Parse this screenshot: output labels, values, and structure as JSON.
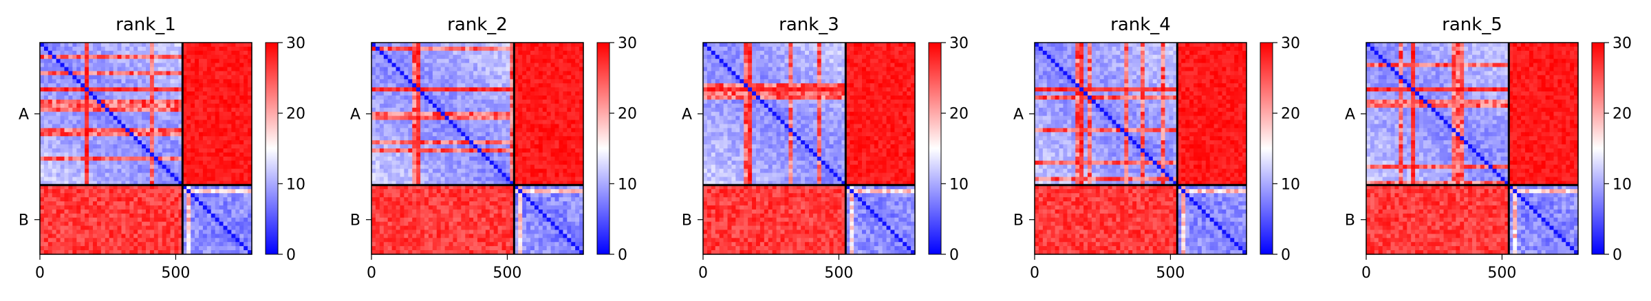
{
  "figure": {
    "colors": {
      "low": "#0000ff",
      "mid": "#ffffff",
      "high": "#ff0000",
      "divider": "#000000"
    }
  },
  "chart_data": [
    {
      "type": "heatmap",
      "title": "rank_1",
      "colormap": "bwr",
      "color_range": [
        0,
        30
      ],
      "colorbar_ticks": [
        0,
        10,
        20,
        30
      ],
      "x_ticks": [
        0,
        500
      ],
      "xlim": [
        0,
        780
      ],
      "chains": [
        {
          "name": "A",
          "start": 0,
          "end": 525
        },
        {
          "name": "B",
          "start": 525,
          "end": 780
        }
      ],
      "block_means": {
        "A-A": 9,
        "A-B": 29,
        "B-A": 28,
        "B-B": 5
      }
    },
    {
      "type": "heatmap",
      "title": "rank_2",
      "colormap": "bwr",
      "color_range": [
        0,
        30
      ],
      "colorbar_ticks": [
        0,
        10,
        20,
        30
      ],
      "x_ticks": [
        0,
        500
      ],
      "xlim": [
        0,
        780
      ],
      "chains": [
        {
          "name": "A",
          "start": 0,
          "end": 525
        },
        {
          "name": "B",
          "start": 525,
          "end": 780
        }
      ],
      "block_means": {
        "A-A": 9,
        "A-B": 29,
        "B-A": 28,
        "B-B": 5
      }
    },
    {
      "type": "heatmap",
      "title": "rank_3",
      "colormap": "bwr",
      "color_range": [
        0,
        30
      ],
      "colorbar_ticks": [
        0,
        10,
        20,
        30
      ],
      "x_ticks": [
        0,
        500
      ],
      "xlim": [
        0,
        780
      ],
      "chains": [
        {
          "name": "A",
          "start": 0,
          "end": 525
        },
        {
          "name": "B",
          "start": 525,
          "end": 780
        }
      ],
      "block_means": {
        "A-A": 9,
        "A-B": 29,
        "B-A": 28,
        "B-B": 5
      }
    },
    {
      "type": "heatmap",
      "title": "rank_4",
      "colormap": "bwr",
      "color_range": [
        0,
        30
      ],
      "colorbar_ticks": [
        0,
        10,
        20,
        30
      ],
      "x_ticks": [
        0,
        500
      ],
      "xlim": [
        0,
        780
      ],
      "chains": [
        {
          "name": "A",
          "start": 0,
          "end": 525
        },
        {
          "name": "B",
          "start": 525,
          "end": 780
        }
      ],
      "block_means": {
        "A-A": 9,
        "A-B": 29,
        "B-A": 28,
        "B-B": 5
      }
    },
    {
      "type": "heatmap",
      "title": "rank_5",
      "colormap": "bwr",
      "color_range": [
        0,
        30
      ],
      "colorbar_ticks": [
        0,
        10,
        20,
        30
      ],
      "x_ticks": [
        0,
        500
      ],
      "xlim": [
        0,
        780
      ],
      "chains": [
        {
          "name": "A",
          "start": 0,
          "end": 525
        },
        {
          "name": "B",
          "start": 525,
          "end": 780
        }
      ],
      "block_means": {
        "A-A": 9,
        "A-B": 29,
        "B-A": 28,
        "B-B": 5
      }
    }
  ]
}
